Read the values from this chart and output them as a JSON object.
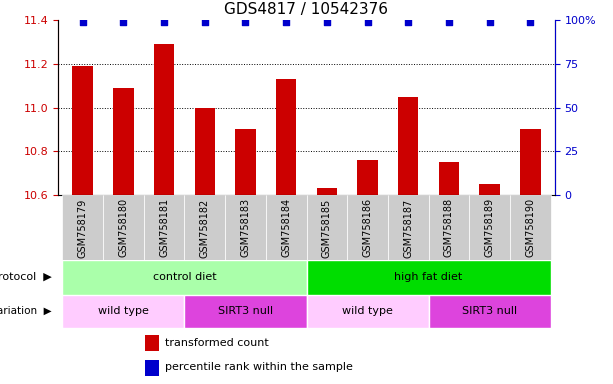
{
  "title": "GDS4817 / 10542376",
  "samples": [
    "GSM758179",
    "GSM758180",
    "GSM758181",
    "GSM758182",
    "GSM758183",
    "GSM758184",
    "GSM758185",
    "GSM758186",
    "GSM758187",
    "GSM758188",
    "GSM758189",
    "GSM758190"
  ],
  "bar_values": [
    11.19,
    11.09,
    11.29,
    11.0,
    10.9,
    11.13,
    10.63,
    10.76,
    11.05,
    10.75,
    10.65,
    10.9
  ],
  "percentile_values": [
    99,
    99,
    99,
    99,
    99,
    99,
    99,
    99,
    99,
    99,
    99,
    99
  ],
  "bar_color": "#cc0000",
  "dot_color": "#0000cc",
  "ylim_left": [
    10.6,
    11.4
  ],
  "ylim_right": [
    0,
    100
  ],
  "yticks_left": [
    10.6,
    10.8,
    11.0,
    11.2,
    11.4
  ],
  "yticks_right": [
    0,
    25,
    50,
    75,
    100
  ],
  "ytick_labels_right": [
    "0",
    "25",
    "50",
    "75",
    "100%"
  ],
  "grid_values": [
    10.8,
    11.0,
    11.2
  ],
  "protocol_labels": [
    "control diet",
    "high fat diet"
  ],
  "protocol_ranges": [
    [
      0,
      6
    ],
    [
      6,
      12
    ]
  ],
  "protocol_colors": [
    "#aaffaa",
    "#00dd00"
  ],
  "genotype_labels": [
    "wild type",
    "SIRT3 null",
    "wild type",
    "SIRT3 null"
  ],
  "genotype_ranges": [
    [
      0,
      3
    ],
    [
      3,
      6
    ],
    [
      6,
      9
    ],
    [
      9,
      12
    ]
  ],
  "genotype_colors": [
    "#ffccff",
    "#dd44dd",
    "#ffccff",
    "#dd44dd"
  ],
  "legend_items": [
    "transformed count",
    "percentile rank within the sample"
  ],
  "legend_colors": [
    "#cc0000",
    "#0000cc"
  ],
  "bar_width": 0.5,
  "sample_label_bg": "#cccccc",
  "title_fontsize": 11,
  "label_fontsize": 8,
  "sample_fontsize": 7,
  "row_label_fontsize": 8,
  "legend_fontsize": 8
}
